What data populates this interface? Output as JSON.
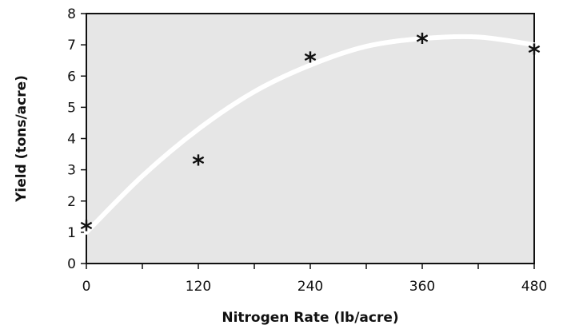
{
  "chart_data": {
    "type": "scatter",
    "xlabel": "Nitrogen Rate (lb/acre)",
    "ylabel": "Yield (tons/acre)",
    "xlim": [
      0,
      480
    ],
    "ylim": [
      0,
      8
    ],
    "x_ticks": [
      0,
      120,
      240,
      360,
      480
    ],
    "y_ticks": [
      0,
      1,
      2,
      3,
      4,
      5,
      6,
      7,
      8
    ],
    "plot_background": "#e6e6e6",
    "curve_color": "#ffffff",
    "marker": "*",
    "points": [
      {
        "x": 0,
        "y": 1.3
      },
      {
        "x": 120,
        "y": 3.4
      },
      {
        "x": 240,
        "y": 6.7
      },
      {
        "x": 360,
        "y": 7.3
      },
      {
        "x": 480,
        "y": 6.95
      }
    ],
    "fit_curve": [
      {
        "x": 0,
        "y": 1.0
      },
      {
        "x": 60,
        "y": 2.8
      },
      {
        "x": 120,
        "y": 4.3
      },
      {
        "x": 180,
        "y": 5.5
      },
      {
        "x": 240,
        "y": 6.35
      },
      {
        "x": 300,
        "y": 6.95
      },
      {
        "x": 360,
        "y": 7.2
      },
      {
        "x": 420,
        "y": 7.25
      },
      {
        "x": 480,
        "y": 7.0
      }
    ]
  }
}
